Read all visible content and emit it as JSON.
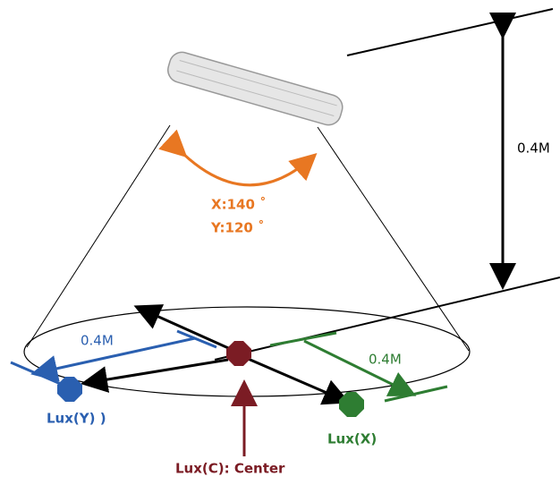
{
  "labels": {
    "height": "0.4M",
    "beam_x": "X:140 ˚",
    "beam_y": "Y:120 ˚",
    "distance_y": "0.4M",
    "distance_x": "0.4M",
    "lux_y": "Lux(Y) )",
    "lux_x": "Lux(X)",
    "lux_c": "Lux(C): Center"
  }
}
